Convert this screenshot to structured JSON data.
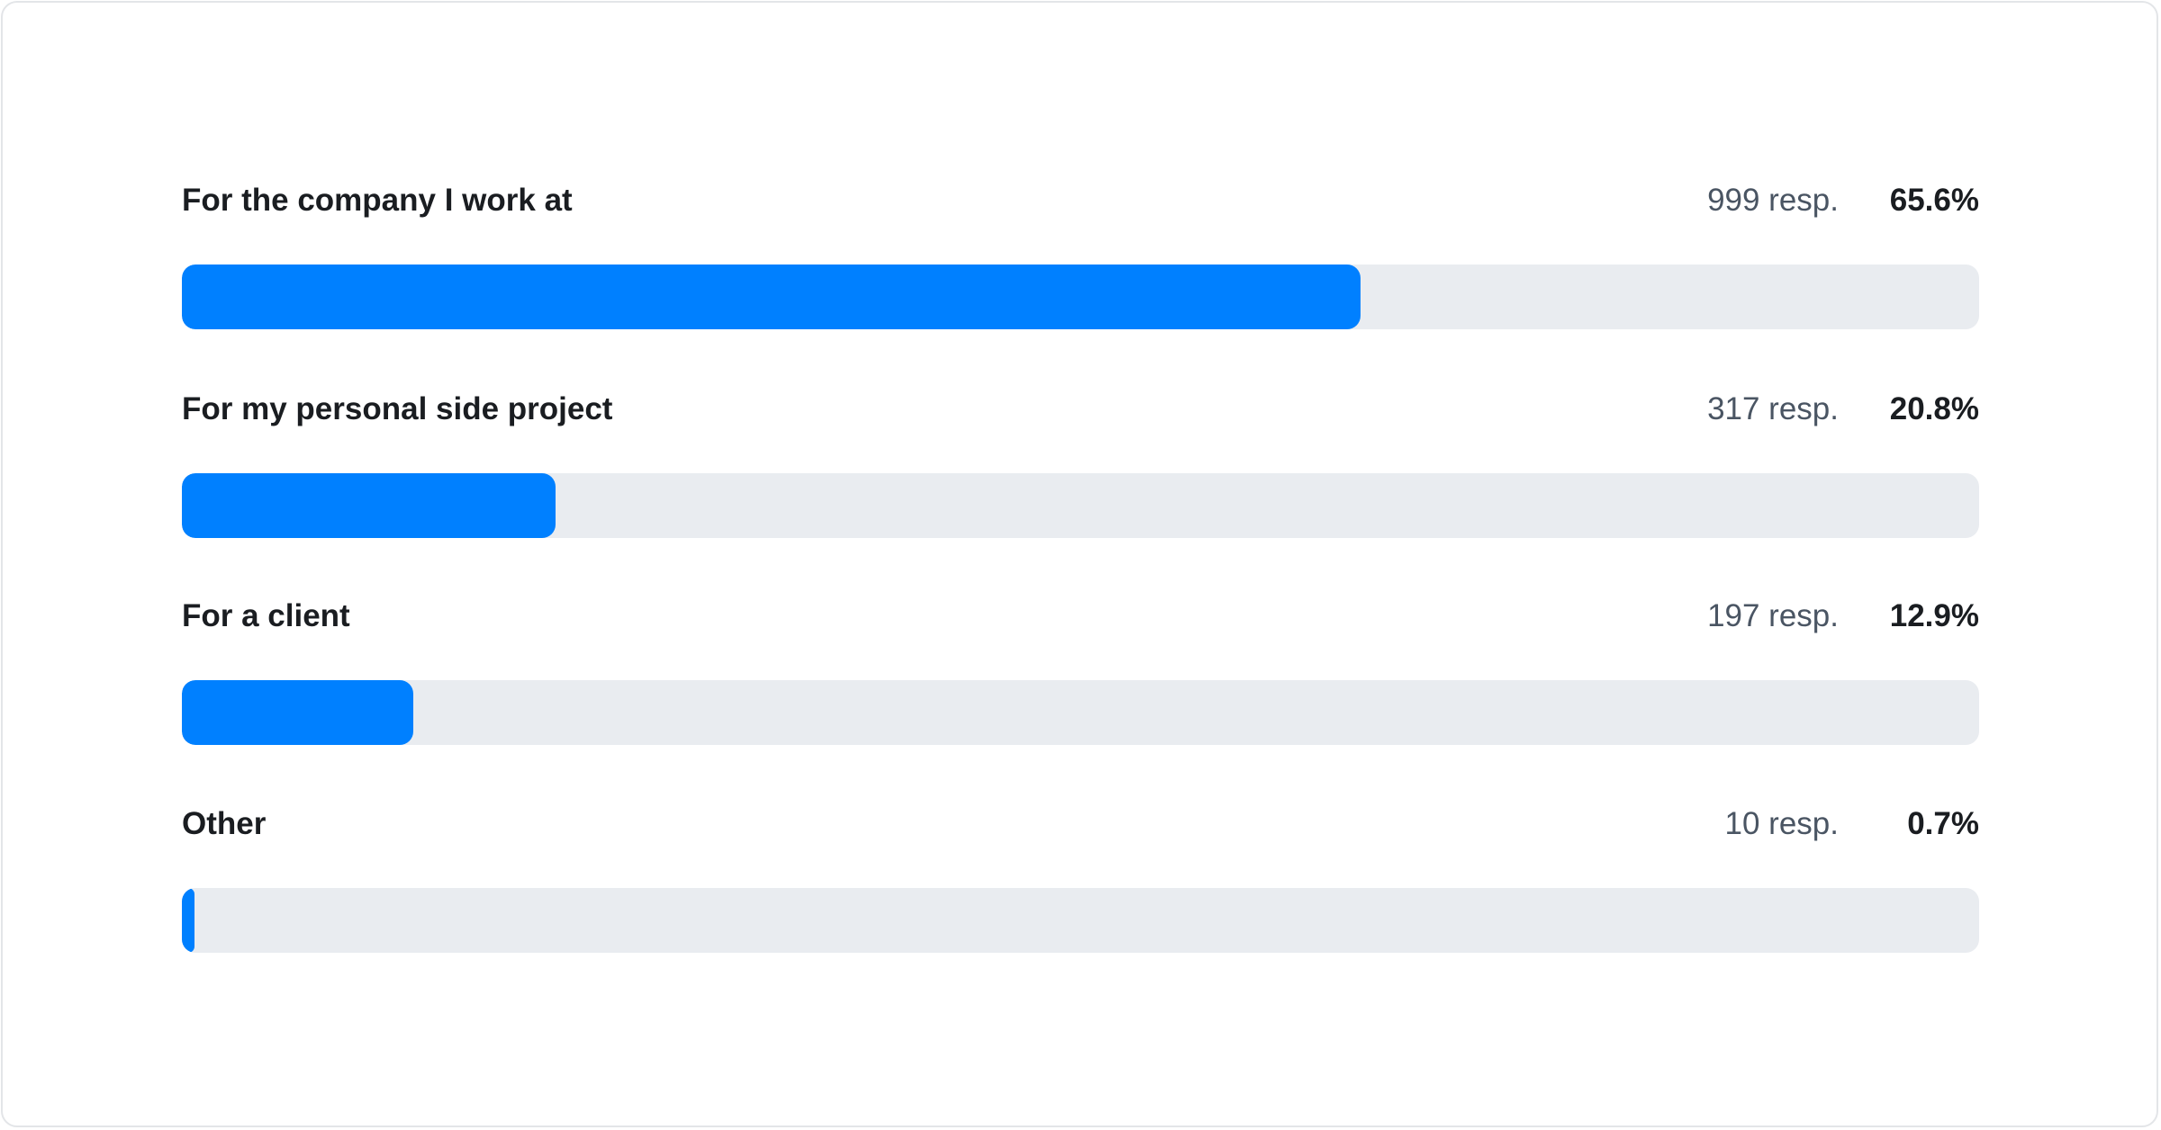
{
  "chart_data": {
    "type": "bar",
    "orientation": "horizontal",
    "categories": [
      "For the company I work at",
      "For my personal side project",
      "For a client",
      "Other"
    ],
    "responses": [
      "999 resp.",
      "317 resp.",
      "197 resp.",
      "10 resp."
    ],
    "percent_labels": [
      "65.6%",
      "20.8%",
      "12.9%",
      "0.7%"
    ],
    "values": [
      65.6,
      20.8,
      12.9,
      0.7
    ],
    "xlim": [
      0,
      100
    ],
    "grid": false,
    "colors": {
      "fill": "#0080ff",
      "track": "#e9ecf0"
    }
  }
}
